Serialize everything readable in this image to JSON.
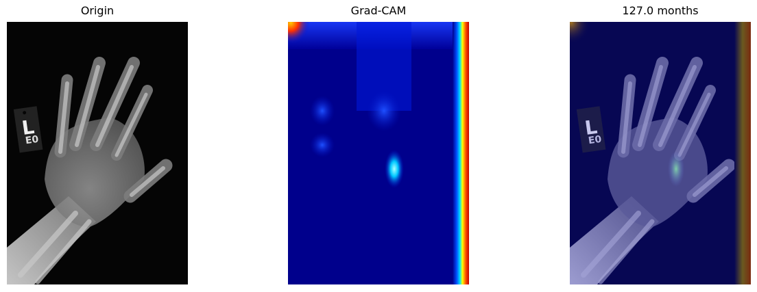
{
  "panels": [
    {
      "title": "Origin"
    },
    {
      "title": "Grad-CAM"
    },
    {
      "title": "127.0 months"
    }
  ],
  "marker": {
    "letter": "L",
    "code": "E0"
  },
  "colors": {
    "background": "#ffffff",
    "xray_background": "#050505",
    "cam_base": "#00008c",
    "cam_hot": "#d20000",
    "overlay_tint": "#070753"
  }
}
